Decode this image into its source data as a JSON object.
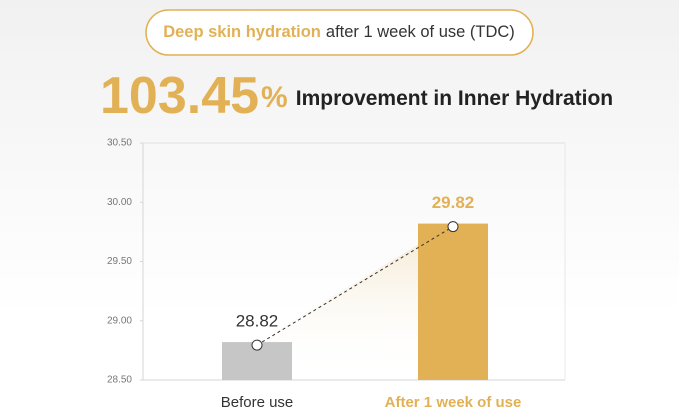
{
  "header": {
    "highlight": "Deep skin hydration",
    "rest": "after 1 week of use (TDC)"
  },
  "headline": {
    "value": 103.45,
    "unit": "%",
    "text": "Improvement in Inner Hydration"
  },
  "chart_data": {
    "type": "bar",
    "categories": [
      "Before use",
      "After 1 week of use"
    ],
    "values": [
      28.82,
      29.82
    ],
    "colors": [
      "#c6c6c6",
      "#e2b155"
    ],
    "ylim": [
      28.5,
      30.5
    ],
    "yticks": [
      {
        "value": 28.5,
        "label": "28.50"
      },
      {
        "value": 29,
        "label": "29.00"
      },
      {
        "value": 29.5,
        "label": "29.50"
      },
      {
        "value": 30,
        "label": "30.00"
      },
      {
        "value": 30.5,
        "label": "30.50"
      }
    ],
    "grid": false
  }
}
